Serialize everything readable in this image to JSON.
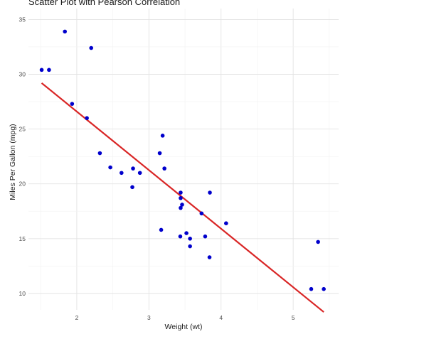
{
  "chart_data": {
    "type": "scatter",
    "title": "Scatter Plot with Pearson Correlation",
    "xlabel": "Weight (wt)",
    "ylabel": "Miles Per Gallon (mpg)",
    "xlim": [
      1.33,
      5.63
    ],
    "ylim": [
      8.5,
      36.0
    ],
    "xticks": [
      2,
      3,
      4,
      5
    ],
    "yticks": [
      10,
      15,
      20,
      25,
      30,
      35
    ],
    "grid": true,
    "legend": "none",
    "point_color": "#0000cc",
    "line_color": "#d92626",
    "points": [
      {
        "x": 2.62,
        "y": 21.0
      },
      {
        "x": 2.875,
        "y": 21.0
      },
      {
        "x": 2.32,
        "y": 22.8
      },
      {
        "x": 3.215,
        "y": 21.4
      },
      {
        "x": 3.44,
        "y": 18.7
      },
      {
        "x": 3.46,
        "y": 18.1
      },
      {
        "x": 3.57,
        "y": 14.3
      },
      {
        "x": 3.19,
        "y": 24.4
      },
      {
        "x": 3.15,
        "y": 22.8
      },
      {
        "x": 3.44,
        "y": 19.2
      },
      {
        "x": 3.44,
        "y": 17.8
      },
      {
        "x": 4.07,
        "y": 16.4
      },
      {
        "x": 3.73,
        "y": 17.3
      },
      {
        "x": 3.78,
        "y": 15.2
      },
      {
        "x": 5.25,
        "y": 10.4
      },
      {
        "x": 5.424,
        "y": 10.4
      },
      {
        "x": 5.345,
        "y": 14.7
      },
      {
        "x": 2.2,
        "y": 32.4
      },
      {
        "x": 1.615,
        "y": 30.4
      },
      {
        "x": 1.835,
        "y": 33.9
      },
      {
        "x": 2.465,
        "y": 21.5
      },
      {
        "x": 3.52,
        "y": 15.5
      },
      {
        "x": 3.435,
        "y": 15.2
      },
      {
        "x": 3.84,
        "y": 13.3
      },
      {
        "x": 3.845,
        "y": 19.2
      },
      {
        "x": 1.935,
        "y": 27.3
      },
      {
        "x": 2.14,
        "y": 26.0
      },
      {
        "x": 1.513,
        "y": 30.4
      },
      {
        "x": 3.17,
        "y": 15.8
      },
      {
        "x": 2.77,
        "y": 19.7
      },
      {
        "x": 3.57,
        "y": 15.0
      },
      {
        "x": 2.78,
        "y": 21.4
      }
    ],
    "fit_line": {
      "x": [
        1.513,
        5.424
      ],
      "y": [
        29.2,
        8.3
      ]
    }
  }
}
